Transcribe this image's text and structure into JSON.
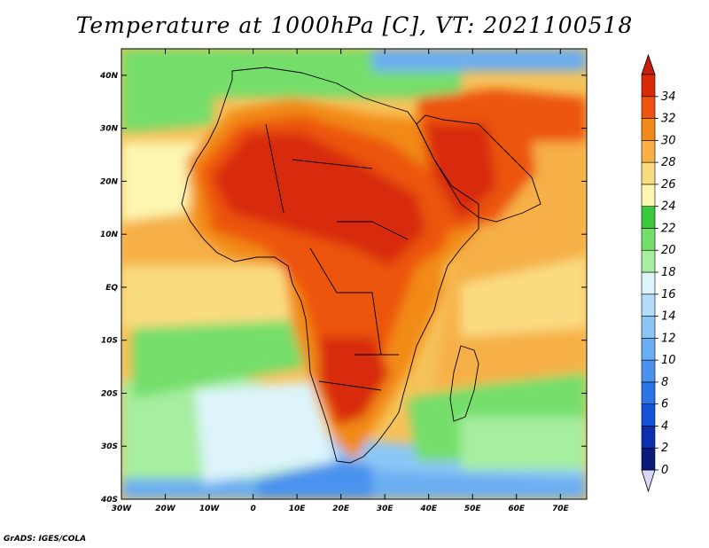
{
  "title": "Temperature at 1000hPa [C], VT: 2021100518",
  "credit": "GrADS: IGES/COLA",
  "map": {
    "lon_range": [
      -30,
      76
    ],
    "lat_range": [
      -40,
      45
    ],
    "x_ticks": [
      "30W",
      "20W",
      "10W",
      "0",
      "10E",
      "20E",
      "30E",
      "40E",
      "50E",
      "60E",
      "70E"
    ],
    "x_tick_values": [
      -30,
      -20,
      -10,
      0,
      10,
      20,
      30,
      40,
      50,
      60,
      70
    ],
    "y_ticks": [
      "40S",
      "30S",
      "20S",
      "10S",
      "EQ",
      "10N",
      "20N",
      "30N",
      "40N"
    ],
    "y_tick_values": [
      -40,
      -30,
      -20,
      -10,
      0,
      10,
      20,
      30,
      40
    ]
  },
  "colorbar": {
    "labels": [
      "0",
      "2",
      "4",
      "6",
      "8",
      "10",
      "12",
      "14",
      "16",
      "18",
      "20",
      "22",
      "24",
      "26",
      "28",
      "30",
      "32",
      "34"
    ],
    "colors": [
      "#0a1a78",
      "#0c2fb0",
      "#1452d8",
      "#2a74e8",
      "#4a92ee",
      "#6aaef2",
      "#8cc6f6",
      "#b4dcf8",
      "#dcf4fa",
      "#a6eea0",
      "#74de6a",
      "#3cc83c",
      "#fcf6b0",
      "#fadc80",
      "#f6b046",
      "#f28a18",
      "#ec5410",
      "#d82a08"
    ],
    "under_color": "#d8d8f6",
    "over_color": "#c81c10"
  }
}
